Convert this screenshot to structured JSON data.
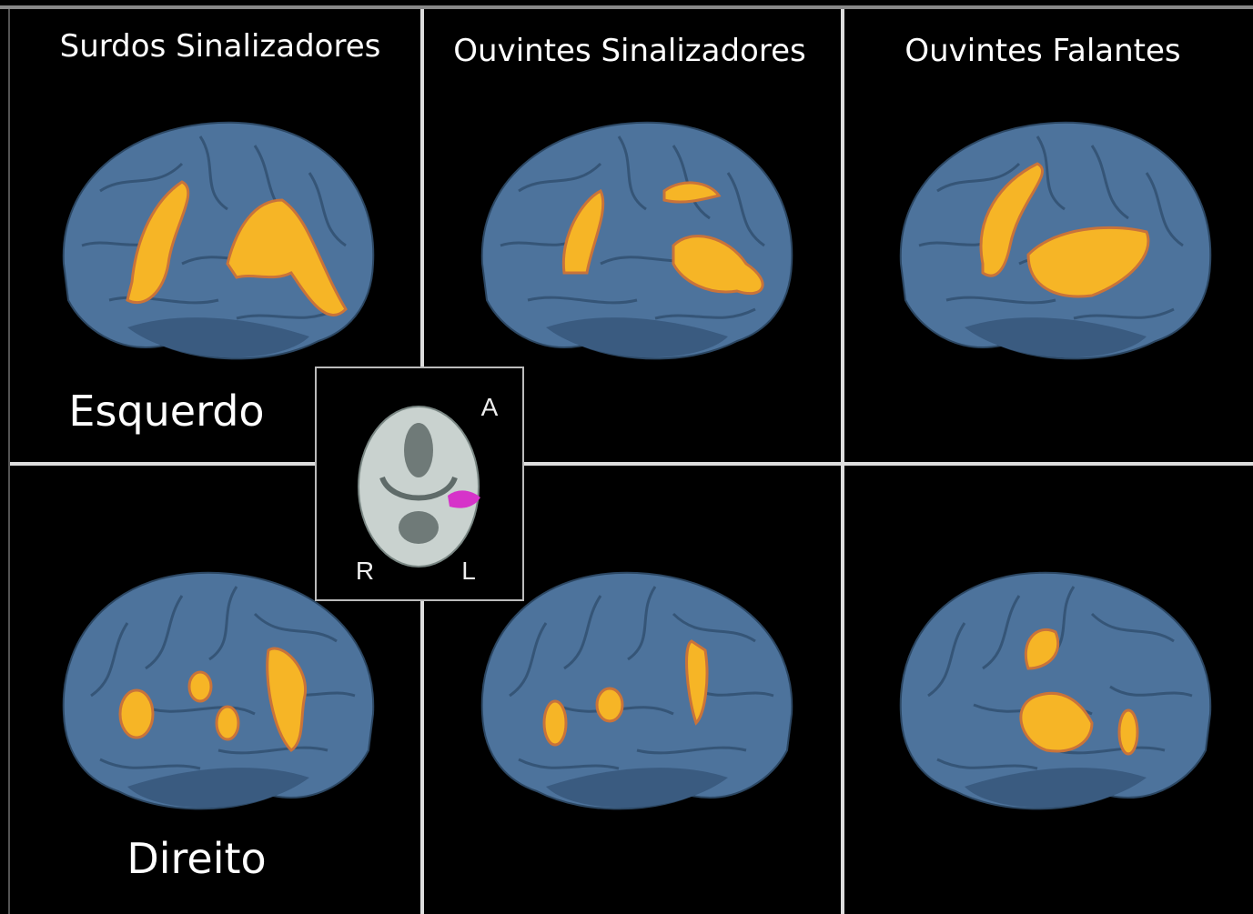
{
  "column_titles": [
    "Surdos Sinalizadores",
    "Ouvintes Sinalizadores",
    "Ouvintes Falantes"
  ],
  "row_labels": [
    "Esquerdo",
    "Direito"
  ],
  "inset": {
    "top": "A",
    "bottom_left": "R",
    "bottom_right": "L"
  }
}
